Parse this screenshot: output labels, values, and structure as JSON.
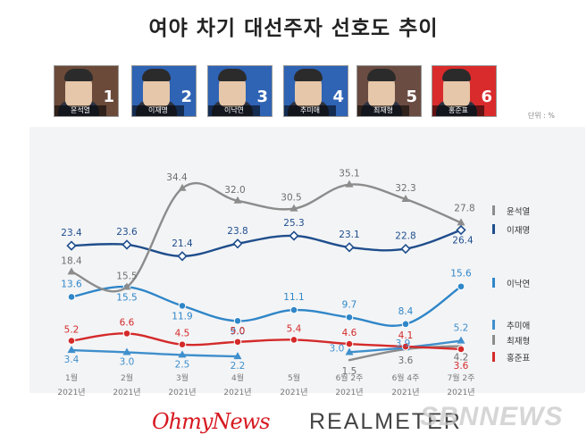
{
  "title": "여야 차기 대선주자 선호도 추이",
  "unit": "단위 : %",
  "candidates": [
    {
      "rank": "1",
      "name": "윤석열",
      "bg": "#6b4a3a"
    },
    {
      "rank": "2",
      "name": "이재명",
      "bg": "#2f63b4"
    },
    {
      "rank": "3",
      "name": "이낙연",
      "bg": "#2f63b4"
    },
    {
      "rank": "4",
      "name": "추미애",
      "bg": "#2f63b4"
    },
    {
      "rank": "5",
      "name": "최재형",
      "bg": "#6a4c42"
    },
    {
      "rank": "6",
      "name": "홍준표",
      "bg": "#d92b2b"
    }
  ],
  "logos": {
    "left": "OhmyNews",
    "right": "REALMETER",
    "watermark": "SBNNEWS"
  },
  "chart_data": {
    "type": "line",
    "categories": [
      "1월",
      "2월",
      "3월",
      "4월",
      "5월",
      "6월 2주",
      "6월 4주",
      "7월 2주"
    ],
    "years": [
      "2021년",
      "2021년",
      "2021년",
      "2021년",
      "2021년",
      "2021년",
      "2021년",
      "2021년"
    ],
    "ylim": [
      0,
      40
    ],
    "series": [
      {
        "name": "윤석열",
        "color": "#8c8c8c",
        "marker": "triangle",
        "label_color": "#6e6e6e",
        "values": [
          18.4,
          15.5,
          34.4,
          32.0,
          30.5,
          35.1,
          32.3,
          27.8
        ],
        "labels": [
          "18.4",
          "15.5",
          "34.4",
          "32.0",
          "30.5",
          "35.1",
          "32.3",
          "27.8"
        ]
      },
      {
        "name": "이재명",
        "color": "#1f4e8c",
        "marker": "diamond",
        "label_color": "#1f4e8c",
        "values": [
          23.4,
          23.6,
          21.4,
          23.8,
          25.3,
          23.1,
          22.8,
          26.4
        ],
        "labels": [
          "23.4",
          "23.6",
          "21.4",
          "23.8",
          "25.3",
          "23.1",
          "22.8",
          "26.4"
        ]
      },
      {
        "name": "이낙연",
        "color": "#2f86c8",
        "marker": "circle",
        "label_color": "#2f86c8",
        "values": [
          13.6,
          15.5,
          11.9,
          9.0,
          11.1,
          9.7,
          8.4,
          15.6
        ],
        "labels": [
          "13.6",
          "15.5",
          "11.9",
          "9.0",
          "11.1",
          "9.7",
          "8.4",
          "15.6"
        ]
      },
      {
        "name": "추미애",
        "color": "#3f8fcc",
        "marker": "triangle",
        "label_color": "#3f8fcc",
        "values": [
          3.4,
          3.0,
          2.5,
          2.2,
          null,
          3.0,
          3.9,
          5.2
        ],
        "labels": [
          "3.4",
          "3.0",
          "2.5",
          "2.2",
          "",
          "3.0",
          "3.9",
          "5.2"
        ]
      },
      {
        "name": "최재형",
        "color": "#8c8c8c",
        "marker": "none",
        "label_color": "#6e6e6e",
        "values": [
          null,
          null,
          null,
          null,
          null,
          1.5,
          3.6,
          4.2
        ],
        "labels": [
          "",
          "",
          "",
          "",
          "",
          "1.5",
          "3.6",
          "4.2"
        ]
      },
      {
        "name": "홍준표",
        "color": "#d42a2a",
        "marker": "circle",
        "label_color": "#d42a2a",
        "values": [
          5.2,
          6.6,
          4.5,
          5.0,
          5.4,
          4.6,
          4.1,
          3.6
        ],
        "labels": [
          "5.2",
          "6.6",
          "4.5",
          "5.0",
          "5.4",
          "4.6",
          "4.1",
          "3.6"
        ]
      }
    ],
    "legend": [
      {
        "name": "윤석열",
        "color": "#8c8c8c"
      },
      {
        "name": "이재명",
        "color": "#1f4e8c"
      },
      {
        "name": "이낙연",
        "color": "#2f86c8"
      },
      {
        "name": "추미애",
        "color": "#3f8fcc"
      },
      {
        "name": "최재형",
        "color": "#8c8c8c"
      },
      {
        "name": "홍준표",
        "color": "#d42a2a"
      }
    ]
  }
}
